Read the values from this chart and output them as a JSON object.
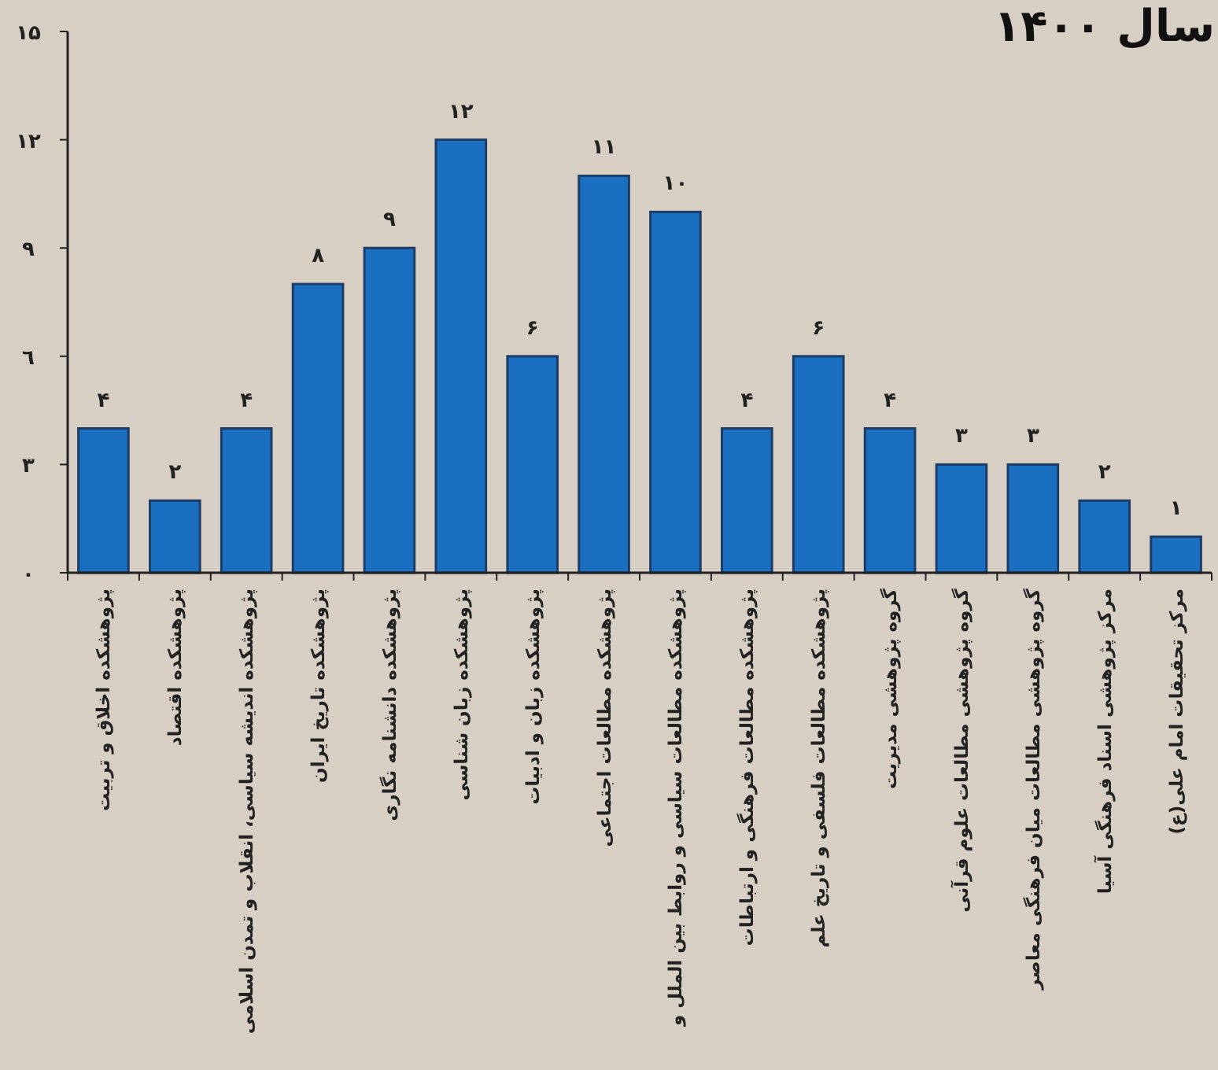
{
  "chart_data": {
    "type": "bar",
    "title": "سال ۱۴۰۰",
    "categories": [
      "پژوهشکده اخلاق و تربیت",
      "پژوهشکده اقتصاد",
      "پژوهشکده اندیشه سیاسی، انقلاب و تمدن اسلامی",
      "پژوهشکده تاریخ ایران",
      "پژوهشکده دانشنامه نگاری",
      "پژوهشکده زبان شناسی",
      "پژوهشکده زبان و ادبیات",
      "پژوهشکده مطالعات اجتماعی",
      "پژوهشکده مطالعات سیاسی و روابط بین الملل و",
      "پژوهشکده مطالعات فرهنگی و ارتباطات",
      "پژوهشکده مطالعات فلسفی و تاریخ علم",
      "گروه پژوهشی مدیریت",
      "گروه پژوهشی مطالعات علوم قرآنی",
      "گروه پژوهشی مطالعات میان فرهنگی معاصر",
      "مرکز پژوهشی اسناد فرهنگی آسیا",
      "مرکز تحقیقات امام علی(ع)"
    ],
    "values": [
      4,
      2,
      4,
      8,
      9,
      12,
      6,
      11,
      10,
      4,
      6,
      4,
      3,
      3,
      2,
      1
    ],
    "value_labels": [
      "۴",
      "۲",
      "۴",
      "۸",
      "۹",
      "۱۲",
      "۶",
      "۱۱",
      "۱۰",
      "۴",
      "۶",
      "۴",
      "۳",
      "۳",
      "۲",
      "۱"
    ],
    "color": "#1a6fc0",
    "ylim": [
      0,
      15
    ],
    "yticks": [
      {
        "value": 0,
        "label": "۰"
      },
      {
        "value": 3,
        "label": "۳"
      },
      {
        "value": 6,
        "label": "٦"
      },
      {
        "value": 9,
        "label": "۹"
      },
      {
        "value": 12,
        "label": "۱۲"
      },
      {
        "value": 15,
        "label": "۱۵"
      }
    ],
    "grid": false
  }
}
